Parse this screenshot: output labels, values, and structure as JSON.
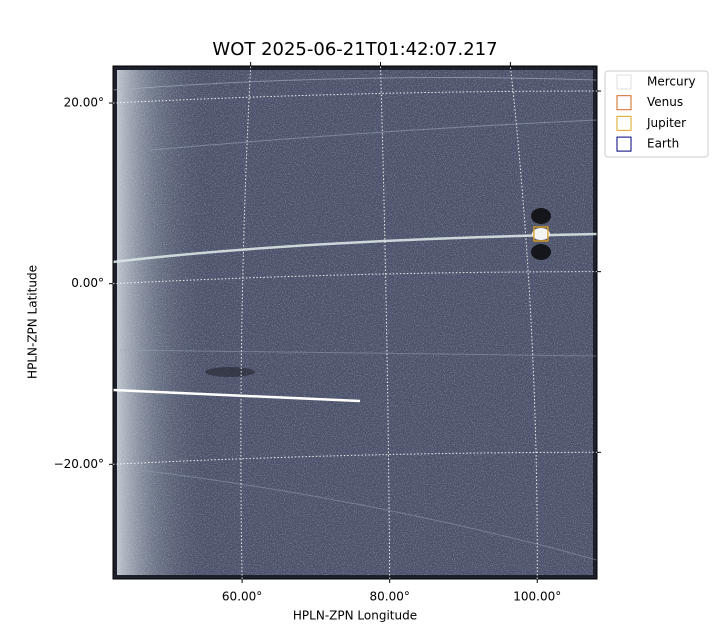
{
  "chart_data": {
    "type": "sky-image",
    "title": "WOT 2025-06-21T01:42:07.217",
    "x_label": "HPLN-ZPN Longitude",
    "y_label": "HPLN-ZPN Latitude",
    "xlim": [
      42.5,
      108.1
    ],
    "ylim": [
      -32.7,
      24.1
    ],
    "xticks": [
      {
        "value": 60,
        "label": "60.00°"
      },
      {
        "value": 80,
        "label": "80.00°"
      },
      {
        "value": 100,
        "label": "100.00°"
      }
    ],
    "yticks": [
      {
        "value": -20,
        "label": "−20.00°"
      },
      {
        "value": 0,
        "label": "0.00°"
      },
      {
        "value": 20,
        "label": "20.00°"
      }
    ],
    "grid": true,
    "legend_position": "upper right outside",
    "series": [
      {
        "name": "Mercury",
        "color": "#dddddd"
      },
      {
        "name": "Venus",
        "color": "#d2691e",
        "x": 100.5,
        "y": 5.5
      },
      {
        "name": "Jupiter",
        "color": "#daa520",
        "x": 100.5,
        "y": 5.5
      },
      {
        "name": "Earth",
        "color": "#000080"
      }
    ]
  }
}
